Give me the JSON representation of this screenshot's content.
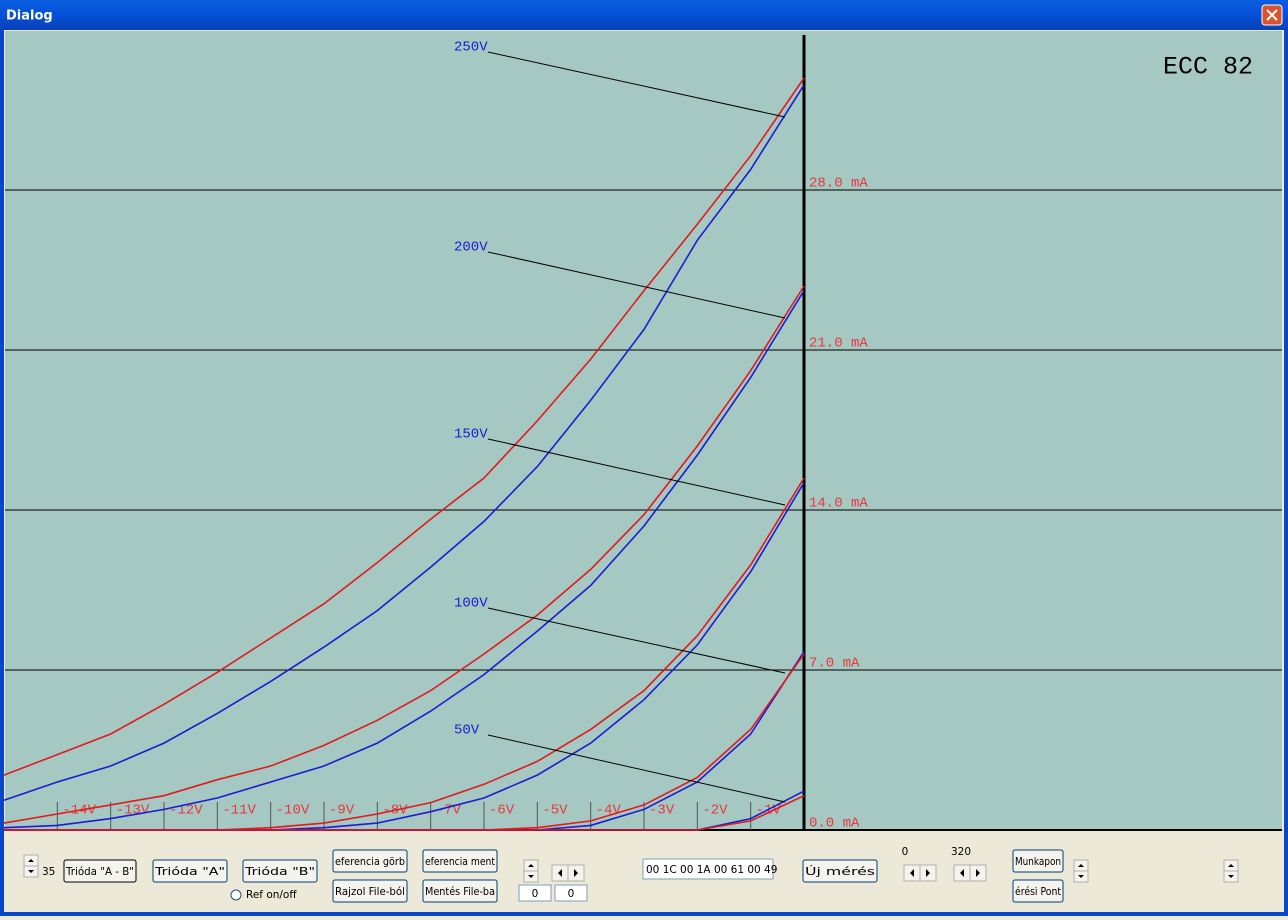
{
  "window": {
    "title": "Dialog"
  },
  "chart_data": {
    "type": "line",
    "title": "ECC 82",
    "x": [
      -15,
      -14,
      -13,
      -12,
      -11,
      -10,
      -9,
      -8,
      -7,
      -6,
      -5,
      -4,
      -3,
      -2,
      -1,
      0
    ],
    "xlim": [
      -15,
      0
    ],
    "xticks": [
      {
        "value": -14,
        "label": "-14V"
      },
      {
        "value": -13,
        "label": "-13V"
      },
      {
        "value": -12,
        "label": "-12V"
      },
      {
        "value": -11,
        "label": "-11V"
      },
      {
        "value": -10,
        "label": "-10V"
      },
      {
        "value": -9,
        "label": "-9V"
      },
      {
        "value": -8,
        "label": "-8V"
      },
      {
        "value": -7,
        "label": "-7V"
      },
      {
        "value": -6,
        "label": "-6V"
      },
      {
        "value": -5,
        "label": "-5V"
      },
      {
        "value": -4,
        "label": "-4V"
      },
      {
        "value": -3,
        "label": "-3V"
      },
      {
        "value": -2,
        "label": "-2V"
      },
      {
        "value": -1,
        "label": "-1V"
      }
    ],
    "ylim": [
      0,
      35
    ],
    "yticks": [
      {
        "value": 0,
        "label": "0.0 mA"
      },
      {
        "value": 7,
        "label": "7.0 mA"
      },
      {
        "value": 14,
        "label": "14.0 mA"
      },
      {
        "value": 21,
        "label": "21.0 mA"
      },
      {
        "value": 28,
        "label": "28.0 mA"
      }
    ],
    "grid": true,
    "annotations": [
      "250V",
      "200V",
      "150V",
      "100V",
      "50V"
    ],
    "series": [
      {
        "color": "#1c1cd0",
        "values": [
          1.3,
          2.1,
          2.8,
          3.8,
          5.1,
          6.5,
          8.0,
          9.6,
          11.5,
          13.5,
          15.9,
          18.8,
          21.9,
          25.8,
          28.9,
          32.6
        ]
      },
      {
        "color": "#e01a1e",
        "values": [
          2.4,
          3.3,
          4.2,
          5.5,
          6.9,
          8.4,
          9.9,
          11.7,
          13.6,
          15.4,
          17.9,
          20.6,
          23.6,
          26.5,
          29.5,
          32.9
        ]
      },
      {
        "color": "#1c1cd0",
        "values": [
          0.1,
          0.2,
          0.5,
          0.9,
          1.4,
          2.1,
          2.8,
          3.8,
          5.2,
          6.8,
          8.7,
          10.7,
          13.3,
          16.4,
          19.8,
          23.6
        ]
      },
      {
        "color": "#e01a1e",
        "values": [
          0.3,
          0.7,
          1.1,
          1.5,
          2.2,
          2.8,
          3.7,
          4.8,
          6.1,
          7.7,
          9.4,
          11.4,
          13.8,
          16.8,
          20.1,
          23.8
        ]
      },
      {
        "color": "#1c1cd0",
        "values": [
          0,
          0,
          0,
          0,
          0,
          0,
          0.1,
          0.3,
          0.8,
          1.4,
          2.4,
          3.8,
          5.7,
          8.1,
          11.3,
          15.2
        ]
      },
      {
        "color": "#e01a1e",
        "values": [
          0,
          0,
          0,
          0,
          0,
          0.1,
          0.3,
          0.7,
          1.2,
          2.0,
          3.0,
          4.4,
          6.1,
          8.5,
          11.6,
          15.4
        ]
      },
      {
        "color": "#1c1cd0",
        "values": [
          0,
          0,
          0,
          0,
          0,
          0,
          0,
          0,
          0,
          0,
          0,
          0.2,
          0.9,
          2.1,
          4.2,
          7.8
        ]
      },
      {
        "color": "#e01a1e",
        "values": [
          0,
          0,
          0,
          0,
          0,
          0,
          0,
          0,
          0,
          0,
          0.1,
          0.4,
          1.1,
          2.3,
          4.4,
          7.7
        ]
      },
      {
        "color": "#1c1cd0",
        "values": [
          0,
          0,
          0,
          0,
          0,
          0,
          0,
          0,
          0,
          0,
          0,
          0,
          0,
          0,
          0.5,
          1.7
        ]
      },
      {
        "color": "#e01a1e",
        "values": [
          0,
          0,
          0,
          0,
          0,
          0,
          0,
          0,
          0,
          0,
          0,
          0,
          0,
          0,
          0.4,
          1.5
        ]
      }
    ]
  },
  "controls": {
    "buttons": [
      "Trióda \"A - B\"",
      "Trióda \"A\"",
      "Trióda \"B\"",
      "eferencia görb",
      "Rajzol File-ból",
      "eferencia ment",
      "Mentés File-ba",
      "Új mérés",
      "Munkapon",
      "érési Pont"
    ],
    "inputs": [
      "0",
      "0",
      "00 1C 00 1A 00 61 00 49"
    ],
    "labels": [
      "35",
      "Ref on/off",
      "0",
      "320"
    ]
  }
}
